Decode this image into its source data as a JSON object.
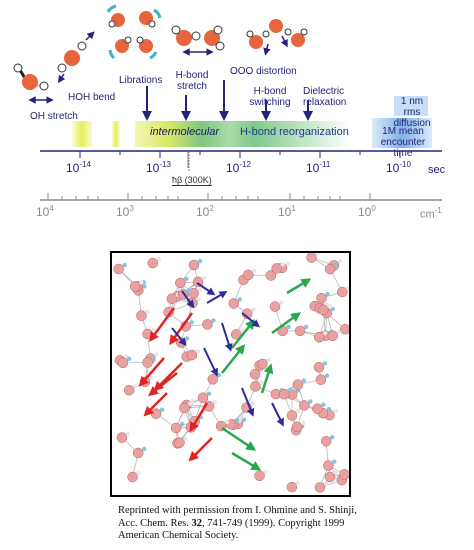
{
  "timescale": {
    "process_labels": {
      "oh_stretch": "OH stretch",
      "hoh_bend": "HOH bend",
      "librations": "Librations",
      "hbond_stretch_1": "H-bond",
      "hbond_stretch_2": "stretch",
      "ooo_distortion": "OOO distortion",
      "hbond_switching_1": "H-bond",
      "hbond_switching_2": "switching",
      "dielectric_1": "Dielectric",
      "dielectric_2": "relaxation",
      "rms_1": "1 nm",
      "rms_2": "rms diffusion",
      "mean_1": "1M mean",
      "mean_2": "encounter time"
    },
    "band_labels": {
      "intermolecular": "intermolecular",
      "hbond_reorg": "H-bond reorganization"
    },
    "time_axis": {
      "ticks": [
        "-14",
        "-13",
        "-12",
        "-11",
        "-10"
      ],
      "base": "10",
      "unit": "sec"
    },
    "hbar_label": "ħβ (300K)",
    "wavenumber_axis": {
      "ticks": [
        "4",
        "3",
        "2",
        "1",
        "0"
      ],
      "base": "10",
      "unit": "cm",
      "unit_exp": "-1"
    },
    "colors": {
      "axis_dark": "#23237a",
      "axis_gray": "#8a8a8a",
      "band_yellow": "#e8ef6a",
      "band_green": "#6dc27a",
      "band_blue": "#7fb2e6",
      "oxygen": "#e8643c",
      "arrow_red": "#e02424",
      "arrow_green": "#27a84a",
      "arrow_blue": "#2b2b9a"
    }
  },
  "caption": {
    "line1": "Reprinted with permission from I. Ohmine and S. Shinji,",
    "line2a": "Acc. Chem. Res. ",
    "line2b": "32",
    "line2c": ", 741-749 (1999). Copyright 1999",
    "line3": "American Chemical Society."
  }
}
